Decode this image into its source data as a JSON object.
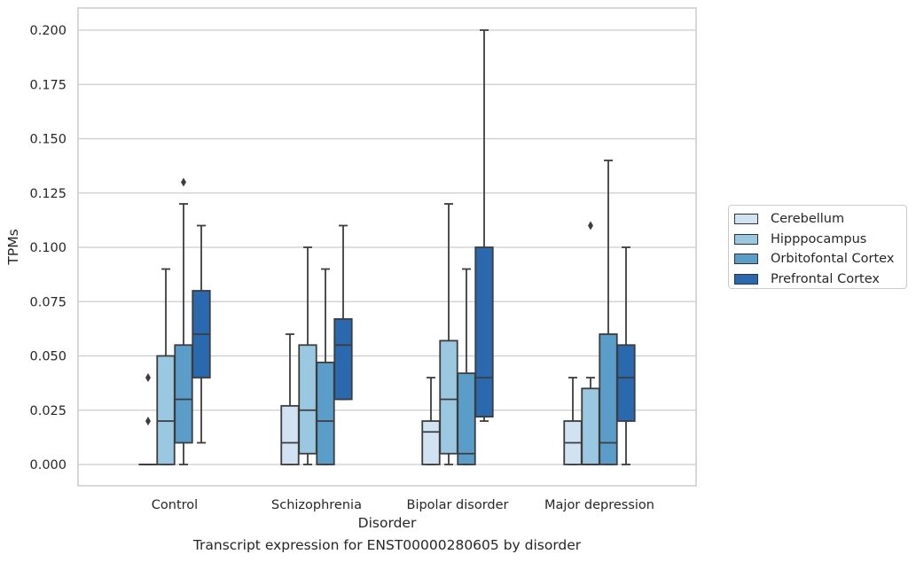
{
  "chart_data": {
    "type": "box",
    "caption": "Transcript expression for ENST00000280605 by disorder",
    "xlabel": "Disorder",
    "ylabel": "TPMs",
    "ylim": [
      -0.01,
      0.21
    ],
    "yticks": [
      0.0,
      0.025,
      0.05,
      0.075,
      0.1,
      0.125,
      0.15,
      0.175,
      0.2
    ],
    "ytick_labels": [
      "0.000",
      "0.025",
      "0.050",
      "0.075",
      "0.100",
      "0.125",
      "0.150",
      "0.175",
      "0.200"
    ],
    "categories": [
      "Control",
      "Schizophrenia",
      "Bipolar disorder",
      "Major depression"
    ],
    "grid": true,
    "legend_position": "right",
    "series": [
      {
        "name": "Cerebellum",
        "color": "#d1e2f2",
        "boxes": [
          {
            "whislo": 0.0,
            "q1": 0.0,
            "med": 0.0,
            "q3": 0.0,
            "whishi": 0.0,
            "fliers": [
              0.02,
              0.04
            ]
          },
          {
            "whislo": 0.0,
            "q1": 0.0,
            "med": 0.01,
            "q3": 0.027,
            "whishi": 0.06,
            "fliers": []
          },
          {
            "whislo": 0.0,
            "q1": 0.0,
            "med": 0.015,
            "q3": 0.02,
            "whishi": 0.04,
            "fliers": []
          },
          {
            "whislo": 0.0,
            "q1": 0.0,
            "med": 0.01,
            "q3": 0.02,
            "whishi": 0.04,
            "fliers": []
          }
        ]
      },
      {
        "name": "Hipppocampus",
        "color": "#9ac8e0",
        "boxes": [
          {
            "whislo": 0.0,
            "q1": 0.0,
            "med": 0.02,
            "q3": 0.05,
            "whishi": 0.09,
            "fliers": []
          },
          {
            "whislo": 0.0,
            "q1": 0.005,
            "med": 0.025,
            "q3": 0.055,
            "whishi": 0.1,
            "fliers": []
          },
          {
            "whislo": 0.0,
            "q1": 0.005,
            "med": 0.03,
            "q3": 0.057,
            "whishi": 0.12,
            "fliers": []
          },
          {
            "whislo": 0.0,
            "q1": 0.0,
            "med": 0.0,
            "q3": 0.035,
            "whishi": 0.04,
            "fliers": [
              0.11
            ]
          }
        ]
      },
      {
        "name": "Orbitofontal Cortex",
        "color": "#5a9dc8",
        "boxes": [
          {
            "whislo": 0.0,
            "q1": 0.01,
            "med": 0.03,
            "q3": 0.055,
            "whishi": 0.12,
            "fliers": [
              0.13
            ]
          },
          {
            "whislo": 0.0,
            "q1": 0.0,
            "med": 0.02,
            "q3": 0.047,
            "whishi": 0.09,
            "fliers": []
          },
          {
            "whislo": 0.0,
            "q1": 0.0,
            "med": 0.005,
            "q3": 0.042,
            "whishi": 0.09,
            "fliers": []
          },
          {
            "whislo": 0.0,
            "q1": 0.0,
            "med": 0.01,
            "q3": 0.06,
            "whishi": 0.14,
            "fliers": []
          }
        ]
      },
      {
        "name": "Prefrontal Cortex",
        "color": "#2a69ad",
        "boxes": [
          {
            "whislo": 0.01,
            "q1": 0.04,
            "med": 0.06,
            "q3": 0.08,
            "whishi": 0.11,
            "fliers": []
          },
          {
            "whislo": 0.03,
            "q1": 0.03,
            "med": 0.055,
            "q3": 0.067,
            "whishi": 0.11,
            "fliers": []
          },
          {
            "whislo": 0.02,
            "q1": 0.022,
            "med": 0.04,
            "q3": 0.1,
            "whishi": 0.2,
            "fliers": []
          },
          {
            "whislo": 0.0,
            "q1": 0.02,
            "med": 0.04,
            "q3": 0.055,
            "whishi": 0.1,
            "fliers": []
          }
        ]
      }
    ]
  }
}
